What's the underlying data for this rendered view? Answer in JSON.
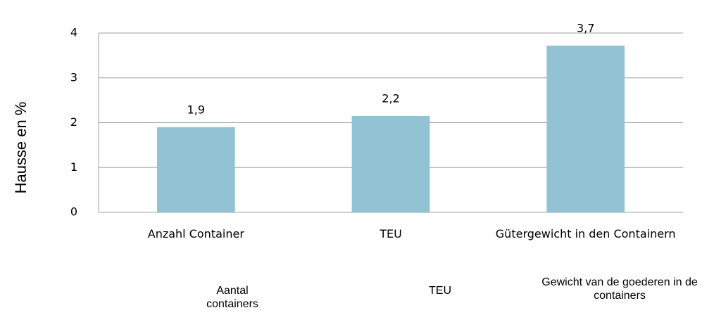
{
  "chart_data": {
    "type": "bar",
    "y_label": "Hausse en %",
    "categories": [
      "Anzahl Container",
      "TEU",
      "Gütergewicht in den Containern"
    ],
    "values": [
      1.9,
      2.15,
      3.72
    ],
    "value_labels": [
      "1,9",
      "2,2",
      "3,7"
    ],
    "color": "#92c3d4",
    "ylim": [
      0,
      4
    ],
    "yticks": [
      0,
      1,
      2,
      3,
      4
    ],
    "grid": true,
    "annotations": [
      "Aantal containers",
      "TEU",
      "Gewicht van de goederen in de containers"
    ]
  }
}
